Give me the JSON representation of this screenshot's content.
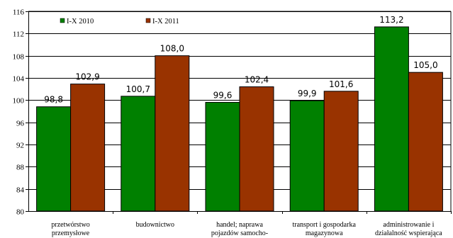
{
  "chart_data": {
    "type": "bar",
    "categories": [
      [
        "przetwórstwo",
        "przemysłowe"
      ],
      [
        "budownictwo"
      ],
      [
        "handel; naprawa",
        "pojazdów samocho-"
      ],
      [
        "transport i gospodarka",
        "magazynowa"
      ],
      [
        "administrowanie i",
        "działalność wspierająca"
      ]
    ],
    "series": [
      {
        "name": "I-X 2010",
        "color": "#008000",
        "values": [
          98.8,
          100.7,
          99.6,
          99.9,
          113.2
        ],
        "labels": [
          "98,8",
          "100,7",
          "99,6",
          "99,9",
          "113,2"
        ]
      },
      {
        "name": "I-X 2011",
        "color": "#993300",
        "values": [
          102.9,
          108.0,
          102.4,
          101.6,
          105.0
        ],
        "labels": [
          "102,9",
          "108,0",
          "102,4",
          "101,6",
          "105,0"
        ]
      }
    ],
    "ylim": [
      80,
      116
    ],
    "yticks": [
      80,
      84,
      88,
      92,
      96,
      100,
      104,
      108,
      112,
      116
    ],
    "grid": true,
    "legend": "top-left",
    "title": "",
    "xlabel": "",
    "ylabel": ""
  }
}
